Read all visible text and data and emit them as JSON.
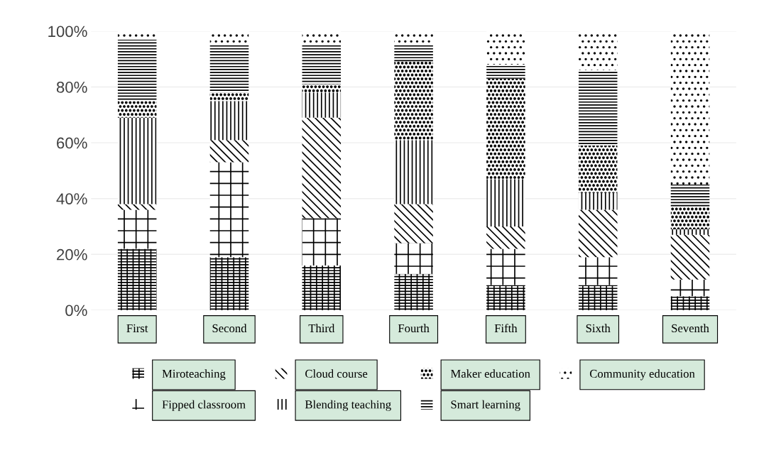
{
  "chart_data": {
    "type": "bar",
    "stacked": true,
    "categories": [
      "First",
      "Second",
      "Third",
      "Fourth",
      "Fifth",
      "Sixth",
      "Seventh"
    ],
    "series": [
      {
        "name": "Miroteaching",
        "color": "#000000",
        "values": [
          22,
          19,
          16,
          13,
          9,
          9,
          5
        ]
      },
      {
        "name": "Fipped classroom",
        "color": "#000000",
        "values": [
          14,
          34,
          17,
          11,
          13,
          10,
          6
        ]
      },
      {
        "name": "Cloud course",
        "color": "#000000",
        "values": [
          2,
          8,
          36,
          14,
          8,
          17,
          16
        ]
      },
      {
        "name": "Blending teaching",
        "color": "#000000",
        "values": [
          31,
          14,
          9,
          23,
          17,
          6,
          2
        ]
      },
      {
        "name": "Maker education",
        "color": "#000000",
        "values": [
          6,
          3,
          3,
          28,
          36,
          17,
          8
        ]
      },
      {
        "name": "Smart learning",
        "color": "#000000",
        "values": [
          22,
          17,
          14,
          6,
          5,
          27,
          8
        ]
      },
      {
        "name": "Community education",
        "color": "#000000",
        "values": [
          3,
          5,
          5,
          5,
          12,
          14,
          55
        ]
      }
    ],
    "ylim": [
      0,
      100
    ],
    "yticks": [
      {
        "value": 0,
        "label": "0%"
      },
      {
        "value": 20,
        "label": "20%"
      },
      {
        "value": 40,
        "label": "40%"
      },
      {
        "value": 60,
        "label": "60%"
      },
      {
        "value": 80,
        "label": "80%"
      },
      {
        "value": 100,
        "label": "100%"
      }
    ],
    "grid": "y",
    "legend": "bottom"
  }
}
